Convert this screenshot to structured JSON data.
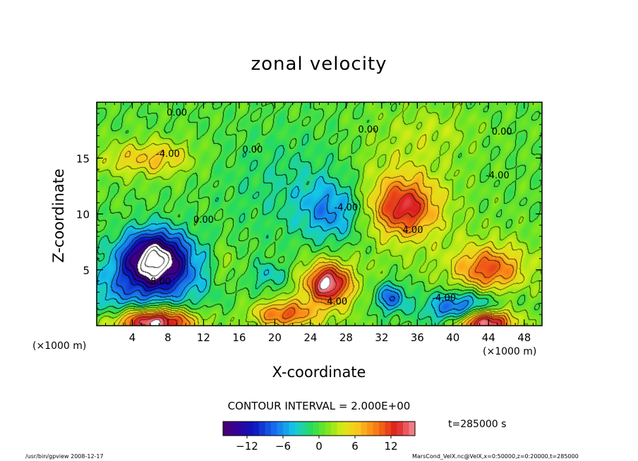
{
  "chart_data": {
    "type": "heatmap",
    "title": "zonal velocity",
    "xlabel": "X-coordinate",
    "ylabel": "Z-coordinate",
    "x_unit_label": "(×1000 m)",
    "x_ticks": [
      4,
      8,
      12,
      16,
      20,
      24,
      28,
      32,
      36,
      40,
      44,
      48
    ],
    "y_ticks": [
      5,
      10,
      15
    ],
    "xlim": [
      0,
      50
    ],
    "ylim": [
      0,
      20
    ],
    "contour_interval_text": "CONTOUR INTERVAL = 2.000E+00",
    "time_text": "t=285000 s",
    "colorbar": {
      "range": [
        -16,
        16
      ],
      "ticks": [
        -12,
        -6,
        0,
        6,
        12
      ]
    },
    "contour_labels": [
      {
        "text": "0.00",
        "x": 9,
        "z": 18.8
      },
      {
        "text": "0.00",
        "x": 17.5,
        "z": 15.5
      },
      {
        "text": "0.00",
        "x": 30.5,
        "z": 17.3
      },
      {
        "text": "0.00",
        "x": 45.5,
        "z": 17.1
      },
      {
        "text": "-4.00",
        "x": 8,
        "z": 15.1
      },
      {
        "text": "0.00",
        "x": 12,
        "z": 9.2
      },
      {
        "text": "-4.00",
        "x": 28,
        "z": 10.3
      },
      {
        "text": "4.00",
        "x": 35.5,
        "z": 8.3
      },
      {
        "text": "-8.00",
        "x": 7,
        "z": 3.7
      },
      {
        "text": "4.00",
        "x": 27,
        "z": 1.9
      },
      {
        "text": "-4.00",
        "x": 39,
        "z": 2.2
      },
      {
        "text": "-4.00",
        "x": 45,
        "z": 13.2
      }
    ],
    "features": [
      {
        "x": 6.5,
        "z": 6.0,
        "sx": 3.5,
        "sz": 2.4,
        "v": -17
      },
      {
        "x": 7.0,
        "z": 4.0,
        "sx": 6.0,
        "sz": 3.5,
        "v": -6
      },
      {
        "x": 6.5,
        "z": 0.3,
        "sx": 4.5,
        "sz": 1.3,
        "v": 18
      },
      {
        "x": 2.0,
        "z": 2.5,
        "sx": 3.5,
        "sz": 2.5,
        "v": -3
      },
      {
        "x": 21.0,
        "z": 1.0,
        "sx": 3.5,
        "sz": 1.2,
        "v": 10
      },
      {
        "x": 26.0,
        "z": 3.8,
        "sx": 2.2,
        "sz": 1.6,
        "v": 12
      },
      {
        "x": 26.0,
        "z": 3.5,
        "sx": 3.8,
        "sz": 2.8,
        "v": 5
      },
      {
        "x": 34.5,
        "z": 10.5,
        "sx": 3.5,
        "sz": 2.4,
        "v": 10
      },
      {
        "x": 34.0,
        "z": 12.0,
        "sx": 6.0,
        "sz": 5.0,
        "v": 4
      },
      {
        "x": 44.0,
        "z": 5.0,
        "sx": 3.5,
        "sz": 1.8,
        "v": 8
      },
      {
        "x": 44.0,
        "z": 5.5,
        "sx": 6.0,
        "sz": 3.0,
        "v": 3
      },
      {
        "x": 43.5,
        "z": 0.3,
        "sx": 3.2,
        "sz": 1.2,
        "v": 18
      },
      {
        "x": 41.0,
        "z": 1.5,
        "sx": 4.0,
        "sz": 1.5,
        "v": -10
      },
      {
        "x": 33.0,
        "z": 2.5,
        "sx": 1.8,
        "sz": 1.3,
        "v": -8
      },
      {
        "x": 26.5,
        "z": 10.2,
        "sx": 3.5,
        "sz": 2.8,
        "v": -6
      },
      {
        "x": 22.0,
        "z": 12.5,
        "sx": 8.0,
        "sz": 5.0,
        "v": -2.5
      },
      {
        "x": 7.0,
        "z": 15.0,
        "sx": 3.8,
        "sz": 1.6,
        "v": 6
      },
      {
        "x": 2.5,
        "z": 14.8,
        "sx": 2.5,
        "sz": 1.5,
        "v": 3
      },
      {
        "x": 19.5,
        "z": 4.5,
        "sx": 2.0,
        "sz": 1.2,
        "v": -4
      },
      {
        "x": 14.5,
        "z": 5.5,
        "sx": 1.3,
        "sz": 2.0,
        "v": 3
      },
      {
        "x": 38.0,
        "z": 17.5,
        "sx": 5.0,
        "sz": 2.0,
        "v": 2
      }
    ]
  },
  "footer": {
    "left": "/usr/bin/gpview  2008-12-17",
    "right": "MarsCond_VelX.nc@VelX,x=0:50000,z=0:20000,t=285000"
  }
}
